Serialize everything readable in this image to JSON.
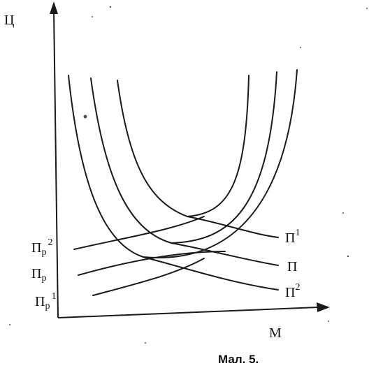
{
  "axes": {
    "y_label": "Ц",
    "x_label": "М"
  },
  "left_labels": [
    {
      "main": "П",
      "sub": "р",
      "sup": "2"
    },
    {
      "main": "П",
      "sub": "р",
      "sup": ""
    },
    {
      "main": "П",
      "sub": "р",
      "sup": "1"
    }
  ],
  "right_labels": [
    {
      "main": "П",
      "sup": "1"
    },
    {
      "main": "П",
      "sup": ""
    },
    {
      "main": "П",
      "sup": "2"
    }
  ],
  "caption": "Мал. 5.",
  "colors": {
    "ink": "#1a1a1a",
    "background": "#ffffff"
  }
}
